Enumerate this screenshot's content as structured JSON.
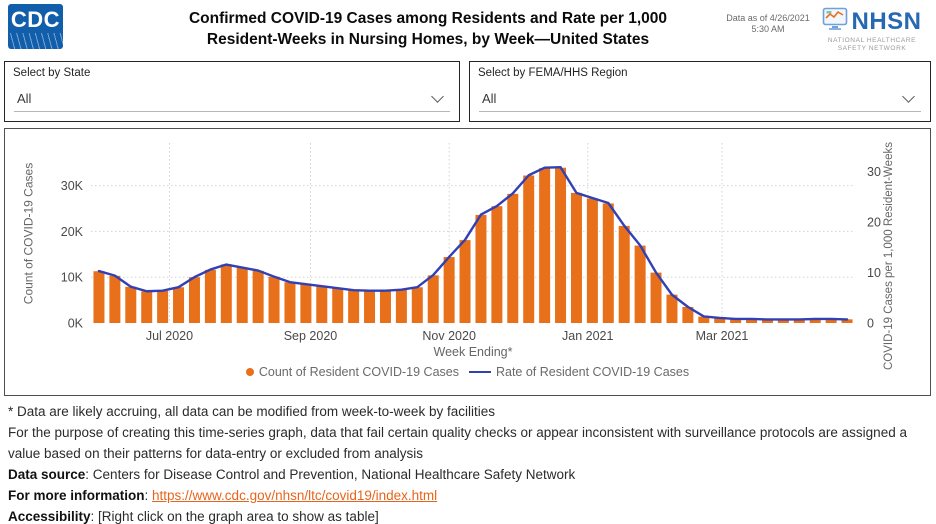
{
  "header": {
    "cdc_logo_text": "CDC",
    "title_line1": "Confirmed COVID-19 Cases among Residents and Rate per 1,000",
    "title_line2": "Resident-Weeks in Nursing Homes, by Week—United States",
    "data_as_of_line1": "Data as of 4/26/2021",
    "data_as_of_line2": "5:30 AM",
    "nhsn_wordmark": "NHSN",
    "nhsn_subtext_line1": "NATIONAL HEALTHCARE",
    "nhsn_subtext_line2": "SAFETY NETWORK"
  },
  "filters": {
    "state": {
      "label": "Select by State",
      "value": "All"
    },
    "region": {
      "label": "Select by FEMA/HHS Region",
      "value": "All"
    }
  },
  "chart_data": {
    "type": "combo-bar-line",
    "x_axis_label": "Week Ending*",
    "left_axis_label": "Count of COVID-19 Cases",
    "right_axis_label": "COVID-19 Cases per 1,000 Resident-Weeks",
    "left_ticks": {
      "labels": [
        "0K",
        "10K",
        "20K",
        "30K"
      ],
      "values": [
        0,
        10,
        20,
        30
      ]
    },
    "right_ticks": {
      "labels": [
        "0",
        "10",
        "20",
        "30"
      ],
      "values": [
        0,
        10,
        20,
        30
      ]
    },
    "x_ticks": [
      {
        "label": "Jul 2020",
        "pos": 0.1027
      },
      {
        "label": "Sep 2020",
        "pos": 0.2873
      },
      {
        "label": "Nov 2020",
        "pos": 0.4688
      },
      {
        "label": "Jan 2021",
        "pos": 0.6502
      },
      {
        "label": "Mar 2021",
        "pos": 0.8259
      }
    ],
    "ylim_left": [
      0,
      39.3
    ],
    "ylim_right": [
      0,
      35.7
    ],
    "grid": true,
    "legend_position": "bottom",
    "series": [
      {
        "name": "Count of Resident COVID-19 Cases",
        "type": "bar",
        "axis": "left",
        "unit": "thousands of cases",
        "color": "#E8701A",
        "values": [
          11.3,
          10.3,
          7.9,
          6.9,
          7.0,
          7.8,
          10.0,
          11.6,
          12.8,
          12.1,
          11.4,
          10.1,
          8.9,
          8.5,
          8.0,
          7.6,
          7.1,
          7.0,
          7.0,
          7.3,
          7.8,
          10.4,
          14.4,
          18.1,
          23.6,
          25.5,
          28.2,
          32.2,
          33.8,
          33.9,
          28.4,
          27.2,
          26.1,
          21.2,
          16.9,
          11.0,
          6.2,
          3.5,
          1.4,
          1.1,
          0.9,
          0.9,
          0.8,
          0.8,
          0.8,
          0.9,
          0.9,
          0.8
        ]
      },
      {
        "name": "Rate of Resident COVID-19 Cases",
        "type": "line",
        "axis": "right",
        "unit": "cases per 1,000 resident-weeks",
        "color": "#3340B3",
        "values": [
          10.3,
          9.4,
          7.2,
          6.3,
          6.4,
          7.1,
          9.1,
          10.6,
          11.6,
          11.0,
          10.4,
          9.2,
          8.1,
          7.7,
          7.3,
          6.9,
          6.5,
          6.4,
          6.4,
          6.6,
          7.1,
          9.5,
          13.1,
          16.5,
          21.5,
          23.2,
          25.7,
          29.3,
          30.8,
          30.9,
          25.8,
          24.8,
          23.8,
          19.3,
          15.4,
          10.0,
          5.6,
          3.2,
          1.3,
          1.0,
          0.8,
          0.8,
          0.7,
          0.7,
          0.7,
          0.8,
          0.8,
          0.7
        ]
      }
    ]
  },
  "notes": {
    "line1": "* Data are likely accruing, all data can be modified from week-to-week by facilities",
    "line2": "For the purpose of creating this time-series graph, data that fail certain quality checks or appear inconsistent with surveillance protocols are assigned a value based on their patterns for data-entry or excluded from analysis",
    "data_source_label": "Data source",
    "data_source_text": ": Centers for Disease Control and Prevention, National Healthcare Safety Network",
    "more_info_label": "For more information",
    "more_info_separator": ": ",
    "link": "https://www.cdc.gov/nhsn/ltc/covid19/index.html",
    "accessibility_label": "Accessibility",
    "accessibility_text": ": [Right click on the graph area to show as table]"
  }
}
